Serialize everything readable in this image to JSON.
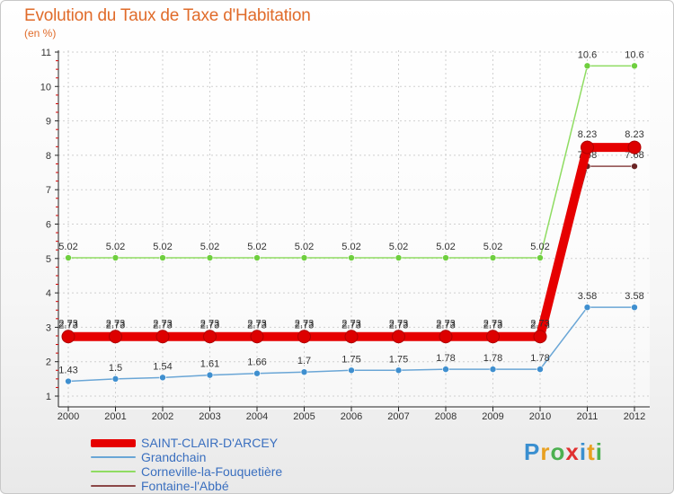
{
  "chart_data": {
    "type": "line",
    "title": "Evolution du Taux de Taxe d'Habitation",
    "subtitle": "(en %)",
    "xlabel": "",
    "ylabel": "(en %)",
    "categories": [
      "2000",
      "2001",
      "2002",
      "2003",
      "2004",
      "2005",
      "2006",
      "2007",
      "2008",
      "2009",
      "2010",
      "2011",
      "2012"
    ],
    "ylim": [
      1,
      11
    ],
    "yticks": [
      "1",
      "2",
      "3",
      "4",
      "5",
      "6",
      "7",
      "8",
      "9",
      "10",
      "11"
    ],
    "legend_position": "bottom-left",
    "series": [
      {
        "name": "Corneville-la-Fouquetière",
        "color": "#8fdc62",
        "point_color": "#6fcf3f",
        "values": [
          5.02,
          5.02,
          5.02,
          5.02,
          5.02,
          5.02,
          5.02,
          5.02,
          5.02,
          5.02,
          5.02,
          10.6,
          10.6
        ],
        "labels": [
          "5.02",
          "5.02",
          "5.02",
          "5.02",
          "5.02",
          "5.02",
          "5.02",
          "5.02",
          "5.02",
          "5.02",
          "5.02",
          "10.6",
          "10.6"
        ]
      },
      {
        "name": "Grandchain",
        "color": "#6aa6d6",
        "point_color": "#3f8fcf",
        "values": [
          1.43,
          1.5,
          1.54,
          1.61,
          1.66,
          1.7,
          1.75,
          1.75,
          1.78,
          1.78,
          1.78,
          3.58,
          3.58
        ],
        "labels": [
          "1.43",
          "1.5",
          "1.54",
          "1.61",
          "1.66",
          "1.7",
          "1.75",
          "1.75",
          "1.78",
          "1.78",
          "1.78",
          "3.58",
          "3.58"
        ]
      },
      {
        "name": "Fontaine-l'Abbé",
        "color": "#8b4747",
        "point_color": "#6b2525",
        "values": [
          2.73,
          2.73,
          2.73,
          2.73,
          2.73,
          2.73,
          2.73,
          2.73,
          2.73,
          2.73,
          2.73,
          7.68,
          7.68
        ],
        "labels": [
          "2.73",
          "2.73",
          "2.73",
          "2.73",
          "2.73",
          "2.73",
          "2.73",
          "2.73",
          "2.73",
          "2.73",
          "2.73",
          "7.68",
          "7.68"
        ]
      },
      {
        "name": "SAINT-CLAIR-D'ARCEY",
        "color": "#e60000",
        "point_color": "#dd0000",
        "values": [
          2.73,
          2.73,
          2.73,
          2.73,
          2.73,
          2.73,
          2.73,
          2.73,
          2.73,
          2.73,
          2.73,
          8.23,
          8.23
        ],
        "labels": [
          "2.73",
          "2.73",
          "2.73",
          "2.73",
          "2.73",
          "2.73",
          "2.73",
          "2.73",
          "2.73",
          "2.73",
          "2.73",
          "8.23",
          "8.23"
        ]
      }
    ]
  },
  "legend": [
    {
      "name": "SAINT-CLAIR-D'ARCEY",
      "color": "#e60000"
    },
    {
      "name": "Grandchain",
      "color": "#6aa6d6"
    },
    {
      "name": "Corneville-la-Fouquetière",
      "color": "#8fdc62"
    },
    {
      "name": "Fontaine-l'Abbé",
      "color": "#8b4747"
    }
  ],
  "brand": {
    "letters": [
      "P",
      "r",
      "o",
      "x",
      "i",
      "t",
      "i"
    ],
    "colors": [
      "#3a8fd0",
      "#e8a020",
      "#4cb050",
      "#e03030",
      "#3a8fd0",
      "#e8a020",
      "#4cb050"
    ]
  }
}
